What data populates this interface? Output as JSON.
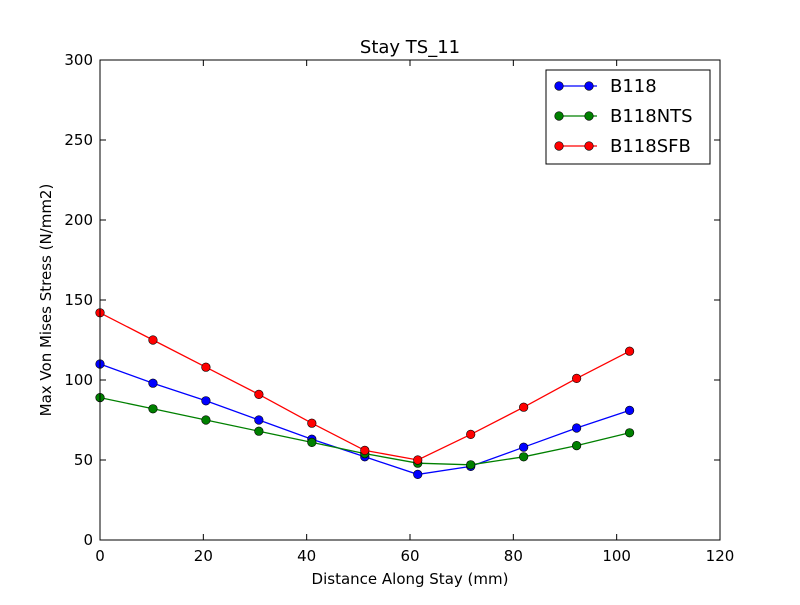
{
  "chart_data": {
    "type": "line",
    "title": "Stay TS_11",
    "xlabel": "Distance Along Stay (mm)",
    "ylabel": "Max Von Mises Stress (N/mm2)",
    "xlim": [
      0,
      120
    ],
    "ylim": [
      0,
      300
    ],
    "xticks": [
      "0",
      "20",
      "40",
      "60",
      "80",
      "100",
      "120"
    ],
    "yticks": [
      "0",
      "50",
      "100",
      "150",
      "200",
      "250",
      "300"
    ],
    "grid": false,
    "legend_position": "top-right",
    "x": [
      0,
      10.25,
      20.5,
      30.75,
      41,
      51.25,
      61.5,
      71.75,
      82,
      92.25,
      102.5
    ],
    "series": [
      {
        "name": "B118",
        "color": "#0000ff",
        "values": [
          110,
          98,
          87,
          75,
          63,
          52,
          41,
          46,
          58,
          70,
          81
        ]
      },
      {
        "name": "B118NTS",
        "color": "#008000",
        "values": [
          89,
          82,
          75,
          68,
          61,
          54,
          48,
          47,
          52,
          59,
          67
        ]
      },
      {
        "name": "B118SFB",
        "color": "#ff0000",
        "values": [
          142,
          125,
          108,
          91,
          73,
          56,
          50,
          66,
          83,
          101,
          118
        ]
      }
    ]
  }
}
